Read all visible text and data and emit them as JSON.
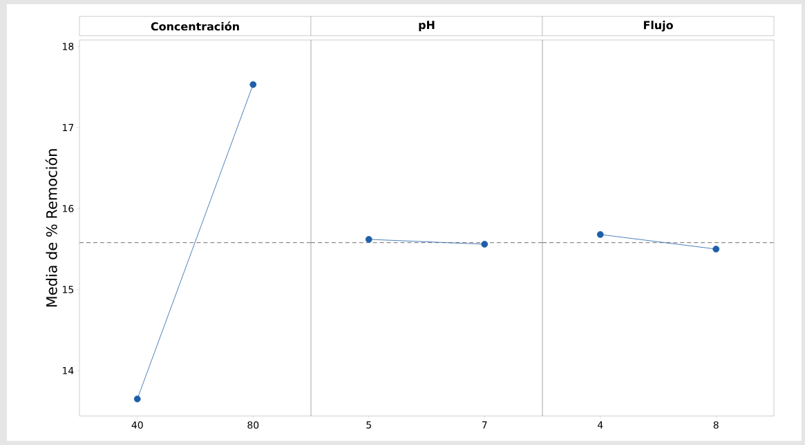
{
  "chart_data": [
    {
      "type": "line",
      "title": "Concentración",
      "ylabel": "Media de % Remoción",
      "categories": [
        "40",
        "80"
      ],
      "values": [
        13.65,
        17.53
      ],
      "color": "#1f5fa8",
      "marker": "circle",
      "ylim": [
        13.44,
        18.08
      ],
      "yticks": [
        14,
        15,
        16,
        17,
        18
      ],
      "ref_lines": [
        {
          "axis": "y",
          "value": 15.58,
          "color": "#8c8c8c",
          "line_style": "dashed"
        }
      ]
    },
    {
      "type": "line",
      "title": "pH",
      "categories": [
        "5",
        "7"
      ],
      "values": [
        15.62,
        15.56
      ],
      "color": "#1f5fa8",
      "marker": "circle",
      "ylim": [
        13.44,
        18.08
      ],
      "tick_labels": "x",
      "ref_lines": [
        {
          "axis": "y",
          "value": 15.58,
          "color": "#8c8c8c",
          "line_style": "dashed"
        }
      ]
    },
    {
      "type": "line",
      "title": "Flujo",
      "categories": [
        "4",
        "8"
      ],
      "values": [
        15.68,
        15.5
      ],
      "color": "#1f5fa8",
      "marker": "circle",
      "ylim": [
        13.44,
        18.08
      ],
      "tick_labels": "x",
      "ref_lines": [
        {
          "axis": "y",
          "value": 15.58,
          "color": "#8c8c8c",
          "line_style": "dashed"
        }
      ]
    }
  ]
}
